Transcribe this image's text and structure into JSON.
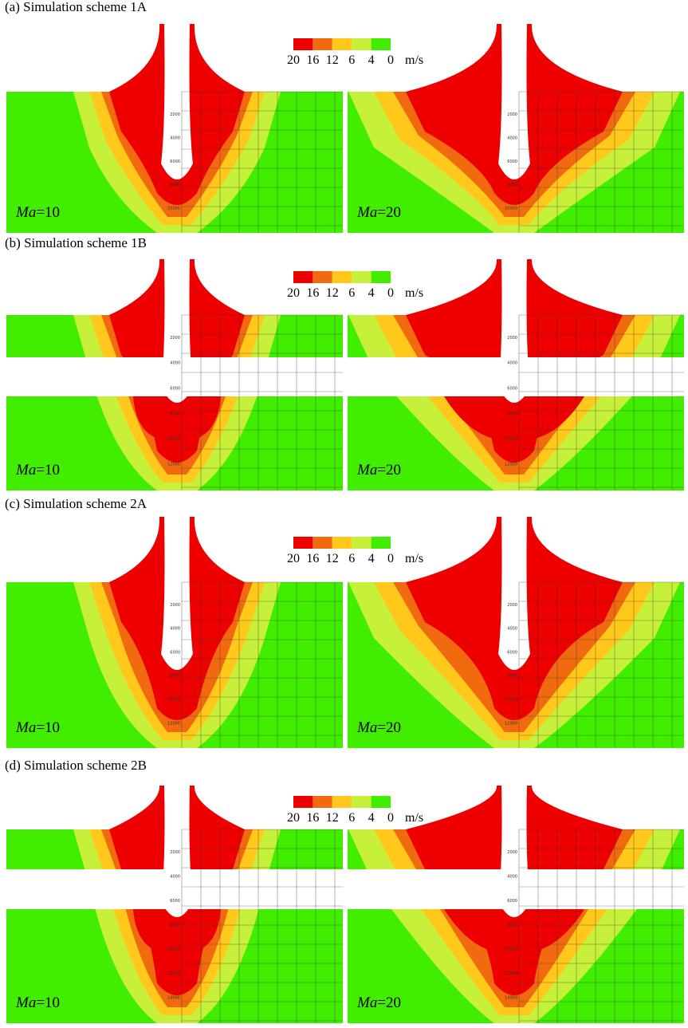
{
  "panels": [
    {
      "title": "(a) Simulation scheme 1A",
      "legend": {
        "values": [
          20,
          16,
          12,
          6,
          4,
          0
        ],
        "unit": "m/s"
      },
      "images": [
        {
          "symbol": "Ma",
          "value": "=10",
          "depth_labels": [
            "2000",
            "4000",
            "6000",
            "8000",
            "10000"
          ]
        },
        {
          "symbol": "Ma",
          "value": "=20",
          "depth_labels": [
            "2000",
            "4000",
            "6000",
            "8000",
            "10000"
          ]
        }
      ]
    },
    {
      "title": "(b) Simulation scheme 1B",
      "legend": {
        "values": [
          20,
          16,
          12,
          6,
          4,
          0
        ],
        "unit": "m/s"
      },
      "images": [
        {
          "symbol": "Ma",
          "value": "=10",
          "depth_labels": [
            "2000",
            "4000",
            "6000",
            "8000",
            "10000",
            "12000"
          ]
        },
        {
          "symbol": "Ma",
          "value": "=20",
          "depth_labels": [
            "2000",
            "4000",
            "6000",
            "8000",
            "10000",
            "12000"
          ]
        }
      ]
    },
    {
      "title": "(c) Simulation scheme 2A",
      "legend": {
        "values": [
          20,
          16,
          12,
          6,
          4,
          0
        ],
        "unit": "m/s"
      },
      "images": [
        {
          "symbol": "Ma",
          "value": "=10",
          "depth_labels": [
            "2000",
            "4000",
            "6000",
            "8000",
            "10000",
            "12000"
          ]
        },
        {
          "symbol": "Ma",
          "value": "=20",
          "depth_labels": [
            "2000",
            "4000",
            "6000",
            "8000",
            "10000",
            "12000"
          ]
        }
      ]
    },
    {
      "title": "(d) Simulation scheme 2B",
      "legend": {
        "values": [
          20,
          16,
          12,
          6,
          4,
          0
        ],
        "unit": "m/s"
      },
      "images": [
        {
          "symbol": "Ma",
          "value": "=10",
          "depth_labels": [
            "2000",
            "4000",
            "6000",
            "8000",
            "10000",
            "12000",
            "14000"
          ]
        },
        {
          "symbol": "Ma",
          "value": "=20",
          "depth_labels": [
            "2000",
            "4000",
            "6000",
            "8000",
            "10000",
            "12000",
            "14000"
          ]
        }
      ]
    }
  ]
}
